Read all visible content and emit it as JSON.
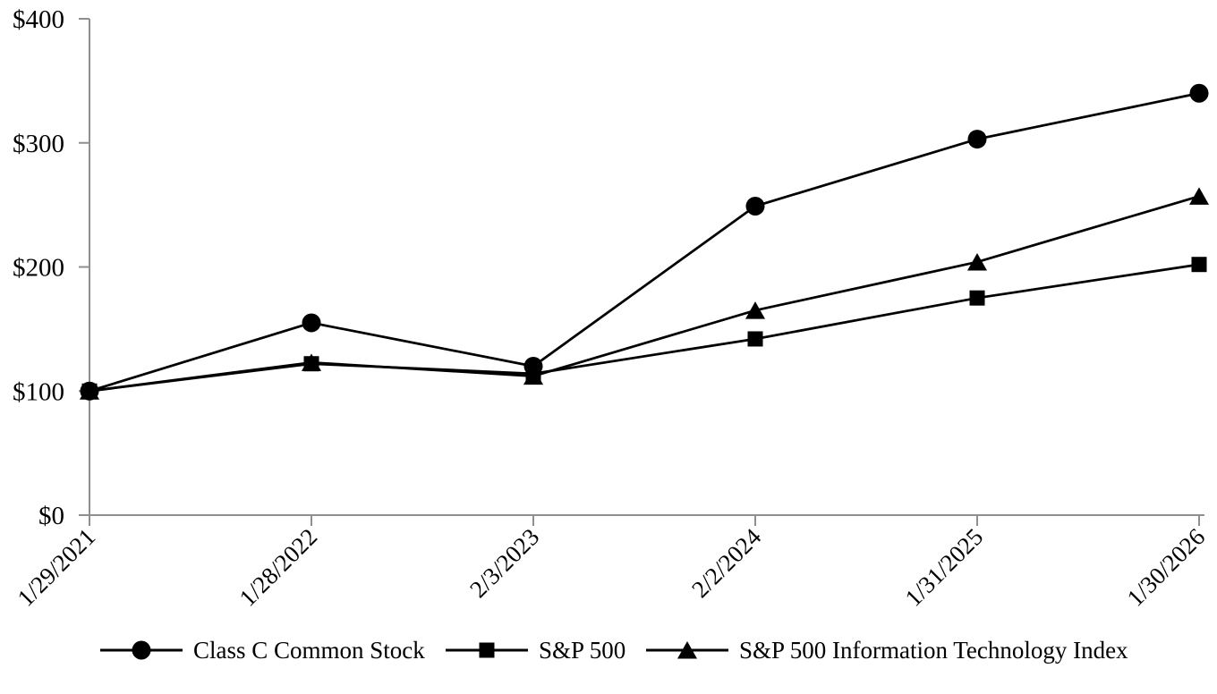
{
  "chart_data": {
    "type": "line",
    "title": "",
    "xlabel": "",
    "ylabel": "",
    "x_categories": [
      "1/29/2021",
      "1/28/2022",
      "2/3/2023",
      "2/2/2024",
      "1/31/2025",
      "1/30/2026"
    ],
    "series": [
      {
        "name": "Class C Common Stock",
        "marker": "circle",
        "color": "#000000",
        "values": [
          100,
          155,
          120,
          249,
          303,
          340
        ]
      },
      {
        "name": "S&P 500",
        "marker": "square",
        "color": "#000000",
        "values": [
          100,
          122,
          114,
          142,
          175,
          202
        ]
      },
      {
        "name": "S&P 500 Information Technology Index",
        "marker": "triangle",
        "color": "#000000",
        "values": [
          100,
          123,
          112,
          165,
          204,
          257
        ]
      }
    ],
    "ylim": [
      0,
      400
    ],
    "ytick_values": [
      0,
      100,
      200,
      300,
      400
    ],
    "ytick_labels": [
      "$0",
      "$100",
      "$200",
      "$300",
      "$400"
    ],
    "grid": false,
    "legend_position": "bottom",
    "axis_color": "#8f8f8f",
    "background": "#ffffff"
  }
}
